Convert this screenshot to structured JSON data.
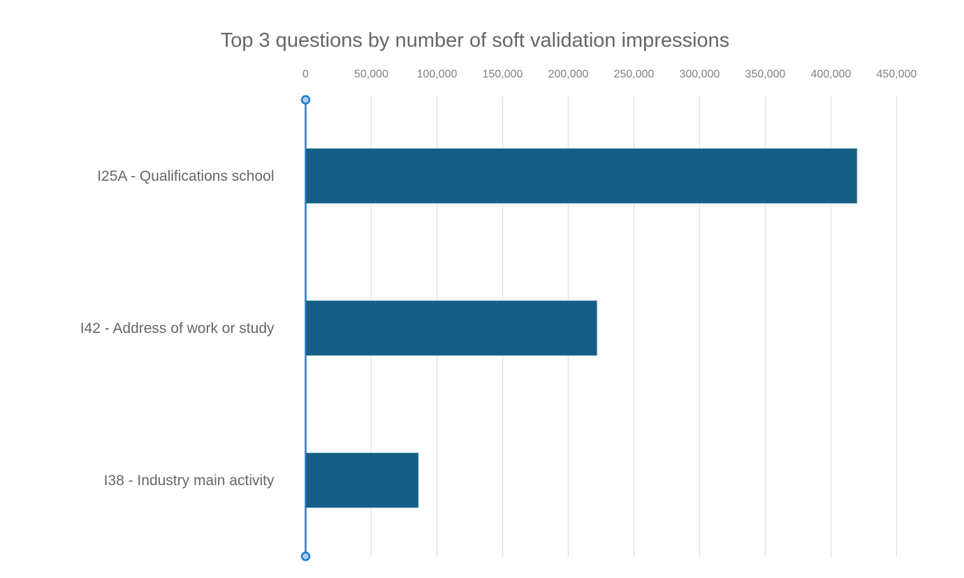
{
  "chart_data": {
    "type": "bar",
    "orientation": "horizontal",
    "title": "Top 3 questions by number of soft validation impressions",
    "categories": [
      "I25A - Qualifications school",
      "I42 - Address of work or study",
      "I38 - Industry main activity"
    ],
    "values": [
      420000,
      222000,
      86000
    ],
    "xlabel": "",
    "ylabel": "",
    "xlim": [
      0,
      450000
    ],
    "x_tick_step": 50000,
    "x_tick_labels": [
      "0",
      "50,000",
      "100,000",
      "150,000",
      "200,000",
      "250,000",
      "300,000",
      "350,000",
      "400,000",
      "450,000"
    ],
    "grid": true,
    "legend": false,
    "colors": {
      "bar": "#165e86",
      "bar_border": "#b3cedd",
      "axis_line": "#1e7ad3",
      "axis_handle_fill": "#abcdf1",
      "gridline": "#e2e2e2",
      "title_text": "#666666",
      "tick_text": "#7f7f7f",
      "category_text": "#666666",
      "background": "#ffffff"
    }
  }
}
